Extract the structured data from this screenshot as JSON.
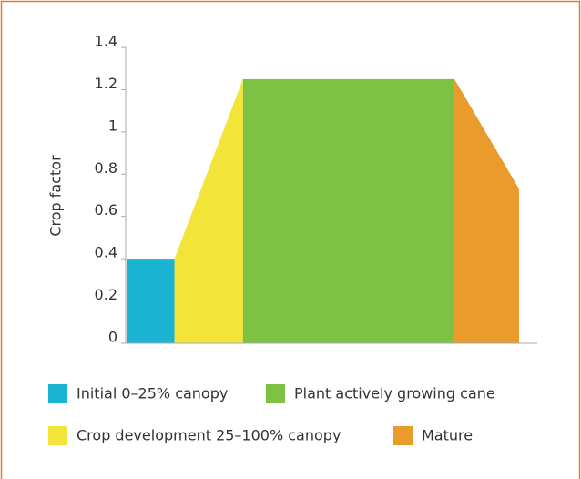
{
  "chart_data": {
    "type": "area",
    "y_label": "Crop factor",
    "ylim": [
      0,
      1.4
    ],
    "yticks": [
      0,
      0.2,
      0.4,
      0.6,
      0.8,
      1,
      1.2,
      1.4
    ],
    "xlim": [
      0,
      100
    ],
    "series": [
      {
        "name": "Initial 0–25% canopy",
        "color": "#1ab3d1",
        "x": [
          0,
          12
        ],
        "values": [
          0.4,
          0.4
        ]
      },
      {
        "name": "Crop development 25–100% canopy",
        "color": "#f3e43a",
        "x": [
          12,
          29.5
        ],
        "values": [
          0.4,
          1.25
        ]
      },
      {
        "name": "Plant actively growing cane",
        "color": "#7dc242",
        "x": [
          29.5,
          83.5
        ],
        "values": [
          1.25,
          1.25
        ]
      },
      {
        "name": "Mature",
        "color": "#e99b2c",
        "x": [
          83.5,
          100
        ],
        "values": [
          1.25,
          0.73
        ]
      }
    ]
  }
}
